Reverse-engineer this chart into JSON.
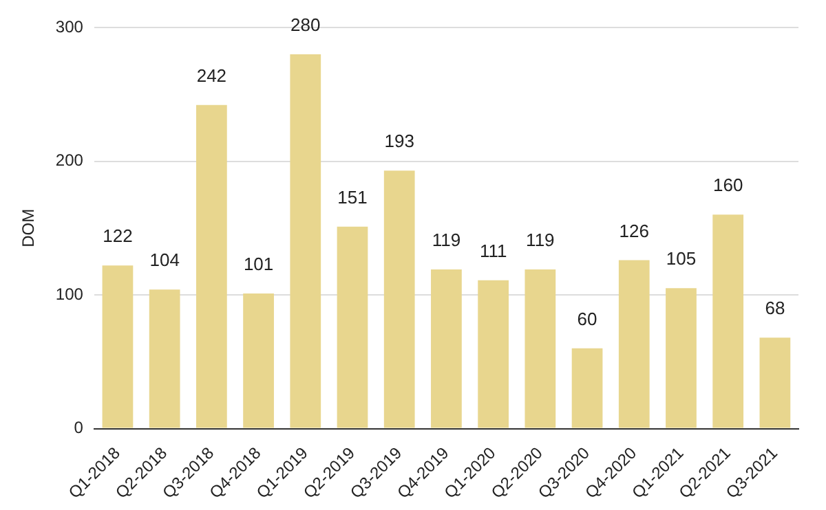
{
  "chart_data": {
    "type": "bar",
    "ylabel": "DOM",
    "categories": [
      "Q1-2018",
      "Q2-2018",
      "Q3-2018",
      "Q4-2018",
      "Q1-2019",
      "Q2-2019",
      "Q3-2019",
      "Q4-2019",
      "Q1-2020",
      "Q2-2020",
      "Q3-2020",
      "Q4-2020",
      "Q1-2021",
      "Q2-2021",
      "Q3-2021"
    ],
    "values": [
      122,
      104,
      242,
      101,
      280,
      151,
      193,
      119,
      111,
      119,
      60,
      126,
      105,
      160,
      68
    ],
    "color": "#e8d68e",
    "ylim": [
      0,
      300
    ],
    "yticks": [
      0,
      100,
      200,
      300
    ],
    "grid": "y",
    "data_labels": true
  }
}
